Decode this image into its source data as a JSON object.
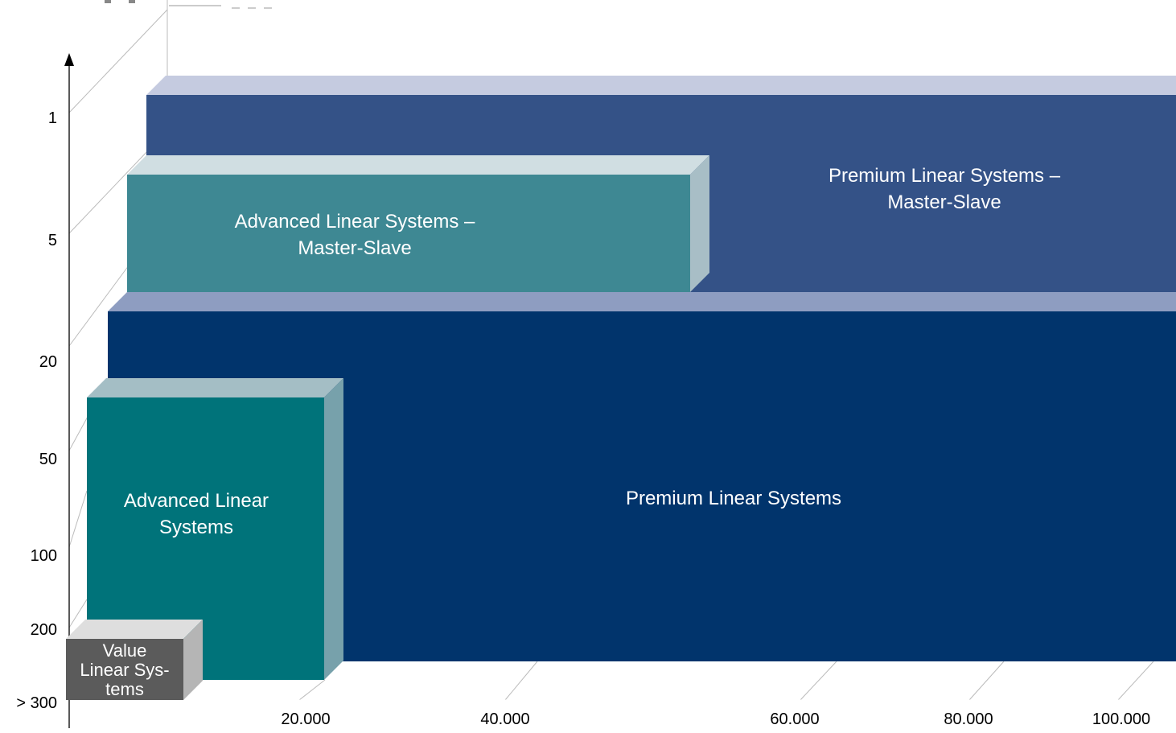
{
  "chart_data": {
    "type": "bar",
    "x_ticks": [
      "20.000",
      "40.000",
      "60.000",
      "80.000",
      "100.000"
    ],
    "y_ticks": [
      "1",
      "5",
      "20",
      "50",
      "100",
      "200",
      "> 300"
    ],
    "blocks": [
      {
        "name": "Premium Linear Systems – Master-Slave",
        "lines": [
          "Premium Linear Systems –",
          "Master-Slave"
        ],
        "color": "#345287"
      },
      {
        "name": "Advanced Linear Systems – Master-Slave",
        "lines": [
          "Advanced Linear Systems –",
          "Master-Slave"
        ],
        "color": "#3e8893"
      },
      {
        "name": "Premium Linear Systems",
        "lines": [
          "Premium Linear Systems"
        ],
        "color": "#01346c"
      },
      {
        "name": "Advanced Linear Systems",
        "lines": [
          "Advanced Linear",
          "Systems"
        ],
        "color": "#00737a"
      },
      {
        "name": "Value Linear Systems",
        "lines": [
          "Value",
          "Linear Sys-",
          "tems"
        ],
        "color": "#5b5b5b"
      }
    ]
  }
}
